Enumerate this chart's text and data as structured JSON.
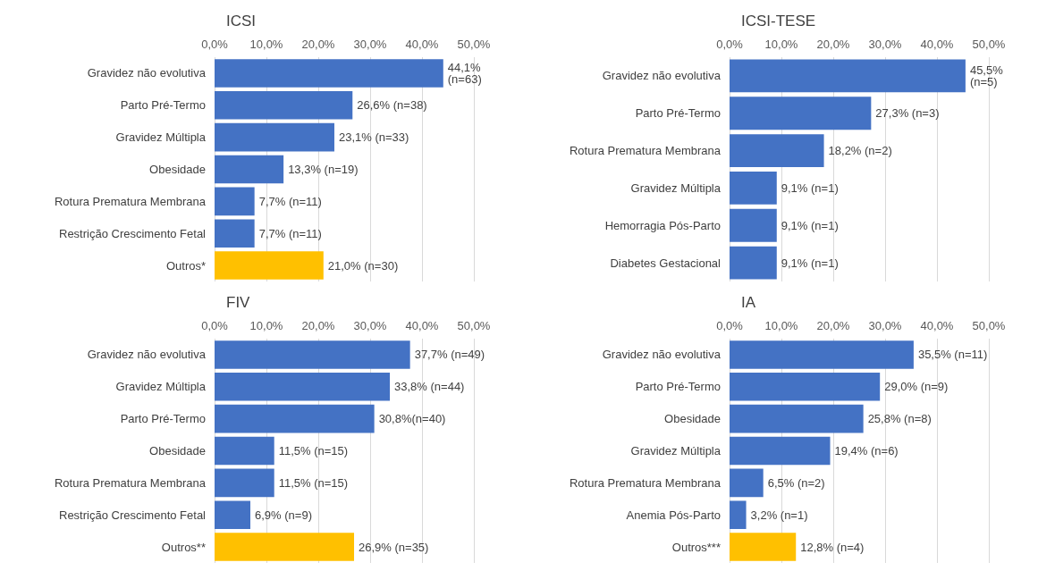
{
  "chart_data": [
    {
      "type": "bar",
      "orientation": "horizontal",
      "title": "ICSI",
      "categories": [
        "Gravidez não evolutiva",
        "Parto Pré-Termo",
        "Gravidez Múltipla",
        "Obesidade",
        "Rotura Prematura Membrana",
        "Restrição Crescimento Fetal",
        "Outros*"
      ],
      "values": [
        44.1,
        26.6,
        23.1,
        13.3,
        7.7,
        7.7,
        21.0
      ],
      "colors": [
        "#4472c4",
        "#4472c4",
        "#4472c4",
        "#4472c4",
        "#4472c4",
        "#4472c4",
        "#ffc000"
      ],
      "value_labels": [
        "44,1% (n=63)",
        "26,6% (n=38)",
        "23,1% (n=33)",
        "13,3% (n=19)",
        "7,7% (n=11)",
        "7,7% (n=11)",
        "21,0% (n=30)"
      ],
      "xlim": [
        0,
        50
      ],
      "xticks": [
        {
          "value": 0,
          "label": "0,0%"
        },
        {
          "value": 10,
          "label": "10,0%"
        },
        {
          "value": 20,
          "label": "20,0%"
        },
        {
          "value": 30,
          "label": "30,0%"
        },
        {
          "value": 40,
          "label": "40,0%"
        },
        {
          "value": 50,
          "label": "50,0%"
        }
      ],
      "grid": "x"
    },
    {
      "type": "bar",
      "orientation": "horizontal",
      "title": "ICSI-TESE",
      "categories": [
        "Gravidez não evolutiva",
        "Parto Pré-Termo",
        "Rotura Prematura Membrana",
        "Gravidez Múltipla",
        "Hemorragia Pós-Parto",
        "Diabetes Gestacional"
      ],
      "values": [
        45.5,
        27.3,
        18.2,
        9.1,
        9.1,
        9.1
      ],
      "colors": [
        "#4472c4",
        "#4472c4",
        "#4472c4",
        "#4472c4",
        "#4472c4",
        "#4472c4"
      ],
      "value_labels": [
        "45,5% (n=5)",
        "27,3% (n=3)",
        "18,2% (n=2)",
        "9,1% (n=1)",
        "9,1% (n=1)",
        "9,1% (n=1)"
      ],
      "xlim": [
        0,
        50
      ],
      "xticks": [
        {
          "value": 0,
          "label": "0,0%"
        },
        {
          "value": 10,
          "label": "10,0%"
        },
        {
          "value": 20,
          "label": "20,0%"
        },
        {
          "value": 30,
          "label": "30,0%"
        },
        {
          "value": 40,
          "label": "40,0%"
        },
        {
          "value": 50,
          "label": "50,0%"
        }
      ],
      "grid": "x"
    },
    {
      "type": "bar",
      "orientation": "horizontal",
      "title": "FIV",
      "categories": [
        "Gravidez não evolutiva",
        "Gravidez Múltipla",
        "Parto Pré-Termo",
        "Obesidade",
        "Rotura Prematura Membrana",
        "Restrição Crescimento Fetal",
        "Outros**"
      ],
      "values": [
        37.7,
        33.8,
        30.8,
        11.5,
        11.5,
        6.9,
        26.9
      ],
      "colors": [
        "#4472c4",
        "#4472c4",
        "#4472c4",
        "#4472c4",
        "#4472c4",
        "#4472c4",
        "#ffc000"
      ],
      "value_labels": [
        "37,7% (n=49)",
        "33,8% (n=44)",
        "30,8%(n=40)",
        "11,5% (n=15)",
        "11,5% (n=15)",
        "6,9% (n=9)",
        "26,9% (n=35)"
      ],
      "xlim": [
        0,
        50
      ],
      "xticks": [
        {
          "value": 0,
          "label": "0,0%"
        },
        {
          "value": 10,
          "label": "10,0%"
        },
        {
          "value": 20,
          "label": "20,0%"
        },
        {
          "value": 30,
          "label": "30,0%"
        },
        {
          "value": 40,
          "label": "40,0%"
        },
        {
          "value": 50,
          "label": "50,0%"
        }
      ],
      "grid": "x"
    },
    {
      "type": "bar",
      "orientation": "horizontal",
      "title": "IA",
      "categories": [
        "Gravidez não evolutiva",
        "Parto Pré-Termo",
        "Obesidade",
        "Gravidez Múltipla",
        "Rotura Prematura Membrana",
        "Anemia Pós-Parto",
        "Outros***"
      ],
      "values": [
        35.5,
        29.0,
        25.8,
        19.4,
        6.5,
        3.2,
        12.8
      ],
      "colors": [
        "#4472c4",
        "#4472c4",
        "#4472c4",
        "#4472c4",
        "#4472c4",
        "#4472c4",
        "#ffc000"
      ],
      "value_labels": [
        "35,5% (n=11)",
        "29,0% (n=9)",
        "25,8% (n=8)",
        "19,4% (n=6)",
        "6,5% (n=2)",
        "3,2% (n=1)",
        "12,8% (n=4)"
      ],
      "xlim": [
        0,
        50
      ],
      "xticks": [
        {
          "value": 0,
          "label": "0,0%"
        },
        {
          "value": 10,
          "label": "10,0%"
        },
        {
          "value": 20,
          "label": "20,0%"
        },
        {
          "value": 30,
          "label": "30,0%"
        },
        {
          "value": 40,
          "label": "40,0%"
        },
        {
          "value": 50,
          "label": "50,0%"
        }
      ],
      "grid": "x"
    }
  ]
}
